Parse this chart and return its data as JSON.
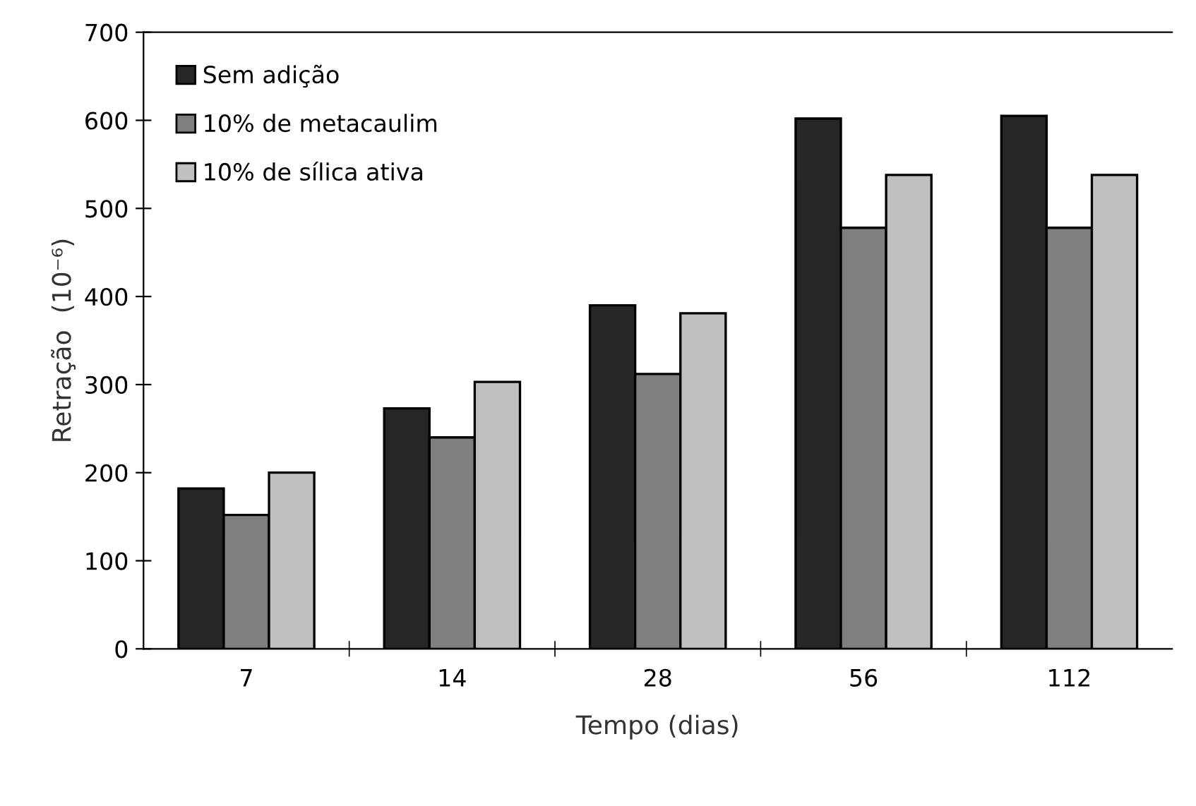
{
  "chart_data": {
    "type": "bar",
    "xlabel": "Tempo (dias)",
    "ylabel": "Retração  (10⁻⁶)",
    "categories": [
      "7",
      "14",
      "28",
      "56",
      "112"
    ],
    "series": [
      {
        "name": "Sem adição",
        "color": "#262626",
        "values": [
          182,
          273,
          390,
          602,
          605
        ]
      },
      {
        "name": "10% de metacaulim",
        "color": "#7f7f7f",
        "values": [
          152,
          240,
          312,
          478,
          478
        ]
      },
      {
        "name": "10% de sílica ativa",
        "color": "#c0c0c0",
        "values": [
          200,
          303,
          381,
          538,
          538
        ]
      }
    ],
    "ylim": [
      0,
      700
    ],
    "yticks": [
      0,
      100,
      200,
      300,
      400,
      500,
      600,
      700
    ],
    "grid": false,
    "legend": "top left"
  }
}
